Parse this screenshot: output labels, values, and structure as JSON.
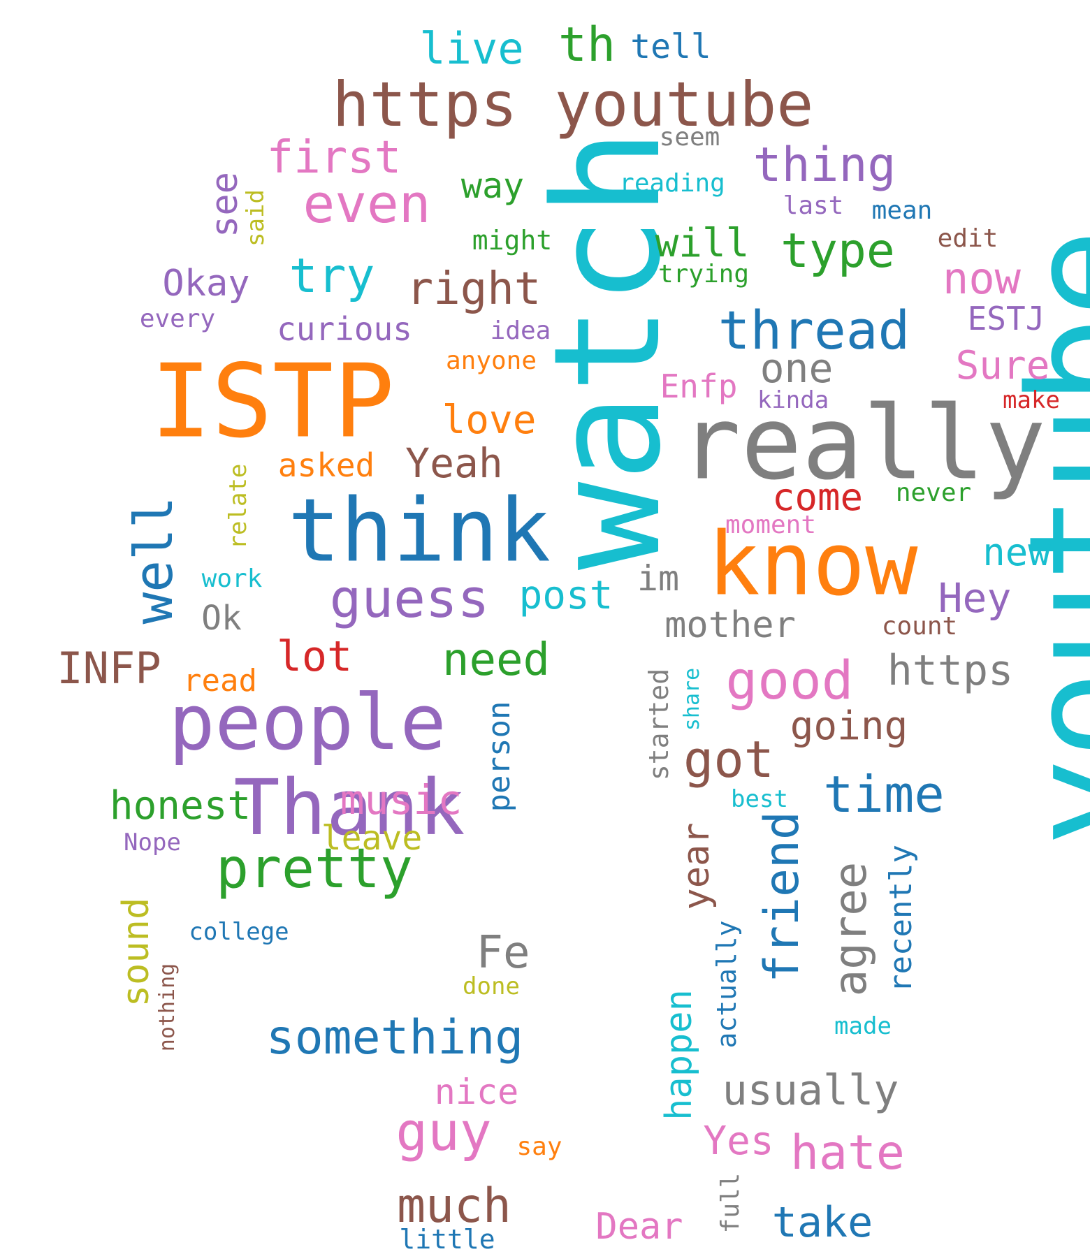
{
  "background": "#ffffff",
  "palette": {
    "blue": "#1f77b4",
    "orange": "#ff7f0e",
    "green": "#2ca02c",
    "red": "#d62728",
    "purple": "#9467bd",
    "brown": "#8c564b",
    "pink": "#e377c2",
    "gray": "#7f7f7f",
    "olive": "#bcbd22",
    "cyan": "#17becf"
  },
  "words": [
    {
      "text": "youtube",
      "color": "#17becf",
      "vertical": true
    },
    {
      "text": "watch",
      "color": "#17becf",
      "vertical": true
    },
    {
      "text": "ISTP",
      "color": "#ff7f0e",
      "vertical": false
    },
    {
      "text": "really",
      "color": "#7f7f7f",
      "vertical": false
    },
    {
      "text": "think",
      "color": "#1f77b4",
      "vertical": false
    },
    {
      "text": "know",
      "color": "#ff7f0e",
      "vertical": false
    },
    {
      "text": "people",
      "color": "#9467bd",
      "vertical": false
    },
    {
      "text": "Thank",
      "color": "#9467bd",
      "vertical": false
    },
    {
      "text": "https youtube",
      "color": "#8c564b",
      "vertical": false
    },
    {
      "text": "pretty",
      "color": "#2ca02c",
      "vertical": false
    },
    {
      "text": "guess",
      "color": "#9467bd",
      "vertical": false
    },
    {
      "text": "good",
      "color": "#e377c2",
      "vertical": false
    },
    {
      "text": "well",
      "color": "#1f77b4",
      "vertical": true
    },
    {
      "text": "thread",
      "color": "#1f77b4",
      "vertical": false
    },
    {
      "text": "even",
      "color": "#e377c2",
      "vertical": false
    },
    {
      "text": "something",
      "color": "#1f77b4",
      "vertical": false
    },
    {
      "text": "thing",
      "color": "#9467bd",
      "vertical": false
    },
    {
      "text": "friend",
      "color": "#1f77b4",
      "vertical": true
    },
    {
      "text": "time",
      "color": "#1f77b4",
      "vertical": false
    },
    {
      "text": "got",
      "color": "#8c564b",
      "vertical": false
    },
    {
      "text": "guy",
      "color": "#e377c2",
      "vertical": false
    },
    {
      "text": "hate",
      "color": "#e377c2",
      "vertical": false
    },
    {
      "text": "first",
      "color": "#e377c2",
      "vertical": false
    },
    {
      "text": "type",
      "color": "#2ca02c",
      "vertical": false
    },
    {
      "text": "right",
      "color": "#8c564b",
      "vertical": false
    },
    {
      "text": "need",
      "color": "#2ca02c",
      "vertical": false
    },
    {
      "text": "much",
      "color": "#8c564b",
      "vertical": false
    },
    {
      "text": "agree",
      "color": "#7f7f7f",
      "vertical": true
    },
    {
      "text": "music",
      "color": "#e377c2",
      "vertical": false
    },
    {
      "text": "usually",
      "color": "#7f7f7f",
      "vertical": false
    },
    {
      "text": "honest",
      "color": "#2ca02c",
      "vertical": false
    },
    {
      "text": "try",
      "color": "#17becf",
      "vertical": false
    },
    {
      "text": "https",
      "color": "#7f7f7f",
      "vertical": false
    },
    {
      "text": "one",
      "color": "#7f7f7f",
      "vertical": false
    },
    {
      "text": "post",
      "color": "#17becf",
      "vertical": false
    },
    {
      "text": "INFP",
      "color": "#8c564b",
      "vertical": false
    },
    {
      "text": "Yeah",
      "color": "#8c564b",
      "vertical": false
    },
    {
      "text": "mother",
      "color": "#7f7f7f",
      "vertical": false
    },
    {
      "text": "going",
      "color": "#8c564b",
      "vertical": false
    },
    {
      "text": "love",
      "color": "#ff7f0e",
      "vertical": false
    },
    {
      "text": "now",
      "color": "#e377c2",
      "vertical": false
    },
    {
      "text": "Sure",
      "color": "#e377c2",
      "vertical": false
    },
    {
      "text": "take",
      "color": "#1f77b4",
      "vertical": false
    },
    {
      "text": "Dear",
      "color": "#e377c2",
      "vertical": false
    },
    {
      "text": "nice",
      "color": "#e377c2",
      "vertical": false
    },
    {
      "text": "Fe",
      "color": "#7f7f7f",
      "vertical": false
    },
    {
      "text": "year",
      "color": "#8c564b",
      "vertical": true
    },
    {
      "text": "happen",
      "color": "#17becf",
      "vertical": true
    },
    {
      "text": "sound",
      "color": "#bcbd22",
      "vertical": true
    },
    {
      "text": "recently",
      "color": "#1f77b4",
      "vertical": true
    },
    {
      "text": "come",
      "color": "#d62728",
      "vertical": false
    },
    {
      "text": "Hey",
      "color": "#9467bd",
      "vertical": false
    },
    {
      "text": "new",
      "color": "#17becf",
      "vertical": false
    },
    {
      "text": "lot",
      "color": "#d62728",
      "vertical": false
    },
    {
      "text": "Yes",
      "color": "#e377c2",
      "vertical": false
    },
    {
      "text": "will",
      "color": "#2ca02c",
      "vertical": false
    },
    {
      "text": "way",
      "color": "#2ca02c",
      "vertical": false
    },
    {
      "text": "th",
      "color": "#2ca02c",
      "vertical": false
    },
    {
      "text": "live",
      "color": "#17becf",
      "vertical": false
    },
    {
      "text": "Okay",
      "color": "#9467bd",
      "vertical": false
    },
    {
      "text": "curious",
      "color": "#9467bd",
      "vertical": false
    },
    {
      "text": "im",
      "color": "#7f7f7f",
      "vertical": false
    },
    {
      "text": "see",
      "color": "#9467bd",
      "vertical": true
    },
    {
      "text": "person",
      "color": "#1f77b4",
      "vertical": true
    },
    {
      "text": "leave",
      "color": "#bcbd22",
      "vertical": false
    },
    {
      "text": "Enfp",
      "color": "#e377c2",
      "vertical": false
    },
    {
      "text": "asked",
      "color": "#ff7f0e",
      "vertical": false
    },
    {
      "text": "Ok",
      "color": "#7f7f7f",
      "vertical": false
    },
    {
      "text": "read",
      "color": "#ff7f0e",
      "vertical": false
    },
    {
      "text": "tell",
      "color": "#1f77b4",
      "vertical": false
    },
    {
      "text": "ESTJ",
      "color": "#9467bd",
      "vertical": false
    },
    {
      "text": "started",
      "color": "#7f7f7f",
      "vertical": true
    },
    {
      "text": "actually",
      "color": "#1f77b4",
      "vertical": true
    },
    {
      "text": "full",
      "color": "#7f7f7f",
      "vertical": true
    },
    {
      "text": "little",
      "color": "#1f77b4",
      "vertical": false
    },
    {
      "text": "count",
      "color": "#8c564b",
      "vertical": false
    },
    {
      "text": "edit",
      "color": "#8c564b",
      "vertical": false
    },
    {
      "text": "never",
      "color": "#2ca02c",
      "vertical": false
    },
    {
      "text": "might",
      "color": "#2ca02c",
      "vertical": false
    },
    {
      "text": "anyone",
      "color": "#ff7f0e",
      "vertical": false
    },
    {
      "text": "idea",
      "color": "#9467bd",
      "vertical": false
    },
    {
      "text": "trying",
      "color": "#2ca02c",
      "vertical": false
    },
    {
      "text": "last",
      "color": "#9467bd",
      "vertical": false
    },
    {
      "text": "mean",
      "color": "#1f77b4",
      "vertical": false
    },
    {
      "text": "reading",
      "color": "#17becf",
      "vertical": false
    },
    {
      "text": "seem",
      "color": "#7f7f7f",
      "vertical": false
    },
    {
      "text": "kinda",
      "color": "#9467bd",
      "vertical": false
    },
    {
      "text": "make",
      "color": "#d62728",
      "vertical": false
    },
    {
      "text": "moment",
      "color": "#e377c2",
      "vertical": false
    },
    {
      "text": "every",
      "color": "#9467bd",
      "vertical": false
    },
    {
      "text": "said",
      "color": "#bcbd22",
      "vertical": true
    },
    {
      "text": "relate",
      "color": "#bcbd22",
      "vertical": true
    },
    {
      "text": "work",
      "color": "#17becf",
      "vertical": false
    },
    {
      "text": "say",
      "color": "#ff7f0e",
      "vertical": false
    },
    {
      "text": "best",
      "color": "#17becf",
      "vertical": false
    },
    {
      "text": "made",
      "color": "#17becf",
      "vertical": false
    },
    {
      "text": "done",
      "color": "#bcbd22",
      "vertical": false
    },
    {
      "text": "college",
      "color": "#1f77b4",
      "vertical": false
    },
    {
      "text": "Nope",
      "color": "#9467bd",
      "vertical": false
    },
    {
      "text": "nothing",
      "color": "#8c564b",
      "vertical": true
    },
    {
      "text": "share",
      "color": "#17becf",
      "vertical": true
    }
  ]
}
